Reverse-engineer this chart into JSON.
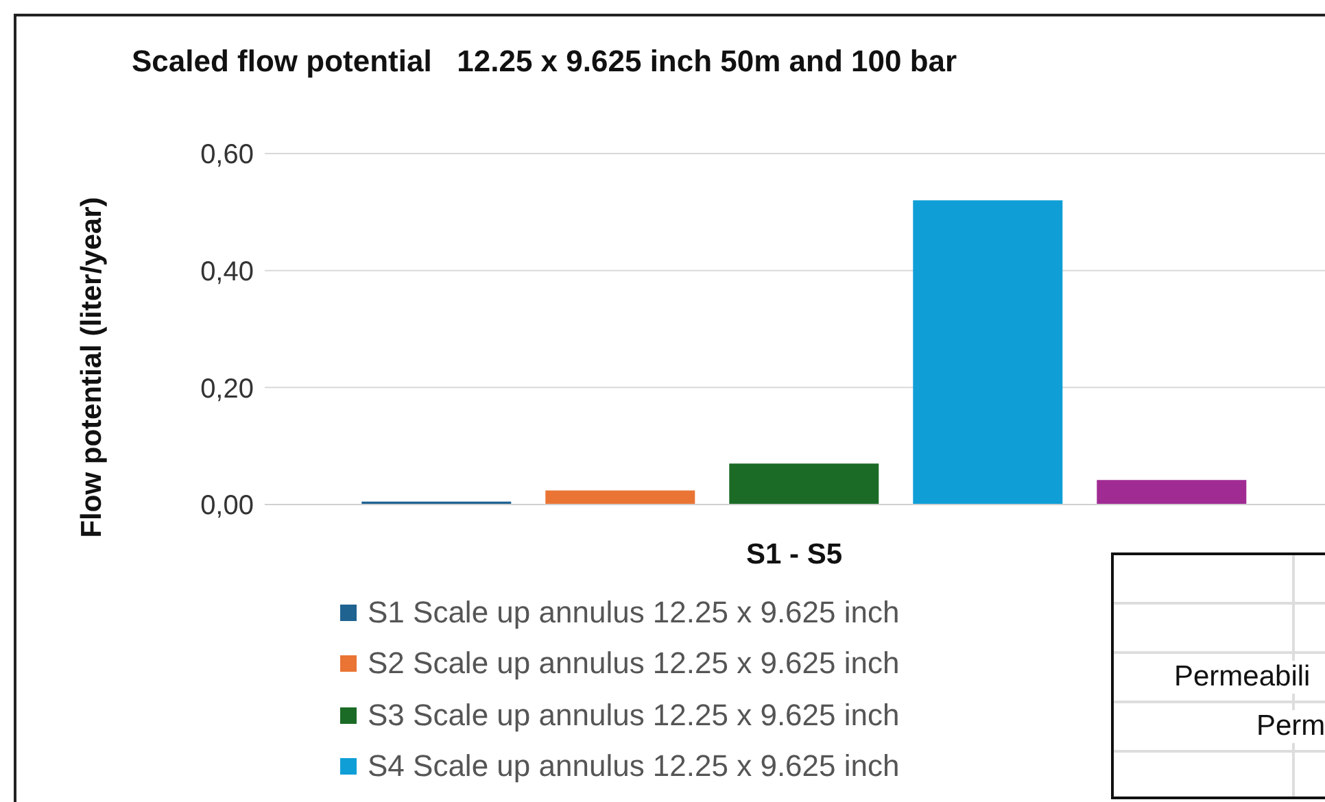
{
  "chart_data": {
    "type": "bar",
    "title": "Scaled flow potential   12.25 x 9.625 inch 50m and 100 bar",
    "xlabel": "S1 - S5",
    "ylabel": "Flow potential (liter/year)",
    "categories": [
      null
    ],
    "series": [
      {
        "name": "S1 Scale up annulus 12.25 x 9.625 inch",
        "color": "#1f6391",
        "values": [
          0.005
        ]
      },
      {
        "name": "S2 Scale up annulus 12.25 x 9.625 inch",
        "color": "#ea7434",
        "values": [
          0.024
        ]
      },
      {
        "name": "S3 Scale up annulus 12.25 x 9.625 inch",
        "color": "#1b6b26",
        "values": [
          0.07
        ]
      },
      {
        "name": "S4 Scale up annulus 12.25 x 9.625 inch",
        "color": "#0f9ed6",
        "values": [
          0.52
        ]
      },
      {
        "color": "#a02b93",
        "values": [
          0.042
        ]
      }
    ],
    "ylim": [
      0,
      0.6
    ],
    "yticks": [
      {
        "value": 0,
        "label": "0,00"
      },
      {
        "value": 0.2,
        "label": "0,20"
      },
      {
        "value": 0.4,
        "label": "0,40"
      },
      {
        "value": 0.6,
        "label": "0,60"
      }
    ],
    "grid": "y",
    "legend": "bottom",
    "annotations": [
      "Permeabili",
      "Perm"
    ]
  }
}
